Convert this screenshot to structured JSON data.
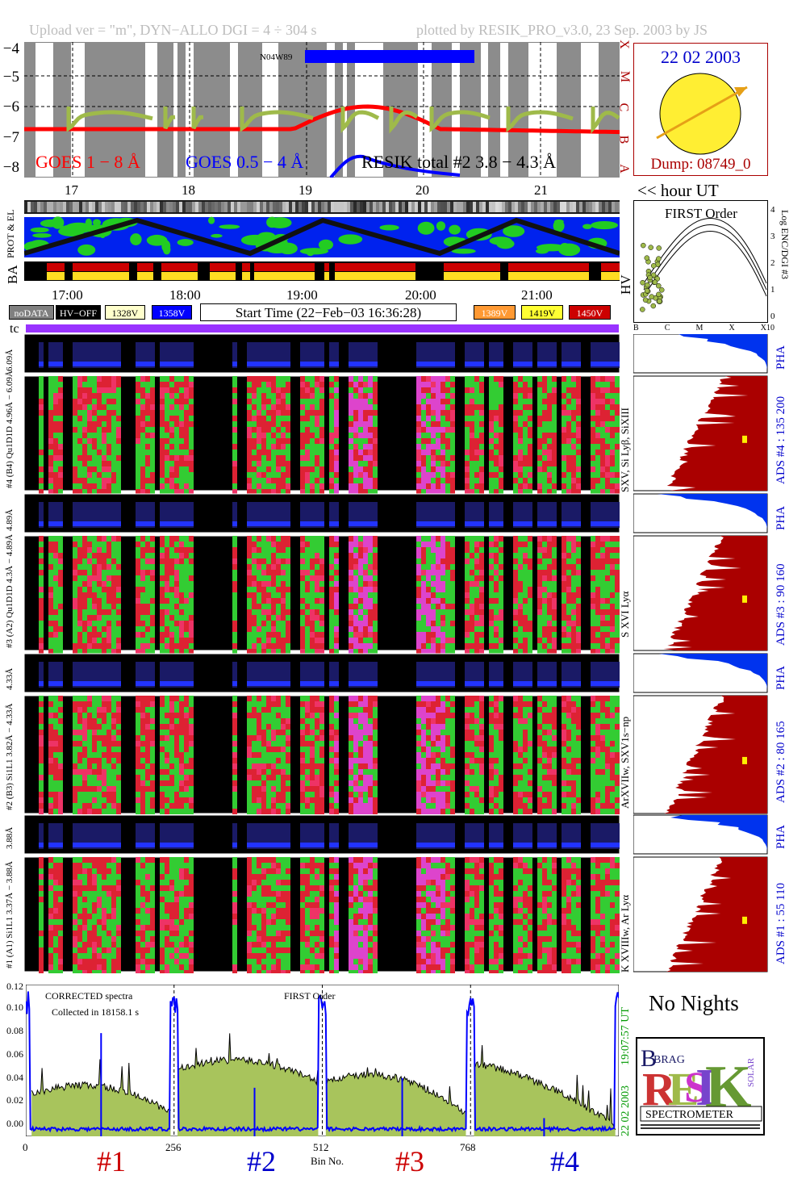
{
  "header": {
    "left": "Upload ver = \"m\",  DYN−ALLO DGI =   4 ÷ 304 s",
    "right": "plotted by RESIK_PRO_v3.0, 23 Sep. 2003 by JS"
  },
  "goes": {
    "yticks": [
      "−4",
      "−5",
      "−6",
      "−7",
      "−8"
    ],
    "class_labels": [
      "X",
      "M",
      "C",
      "B",
      "A"
    ],
    "legend_goes18": "GOES 1 − 8 Å",
    "legend_goes054": "GOES 0.5 − 4 Å",
    "legend_resik": "RESIK total #2  3.8 − 4.3 Å",
    "marker_label": "N04W89",
    "colors": {
      "goes18": "#ff0000",
      "goes054": "#0000ff",
      "resik": "#9fba4a"
    }
  },
  "sun": {
    "date": "22 02 2003",
    "dump": "Dump: 08749_0",
    "color": "#ffee33"
  },
  "time_axis": {
    "top_ticks": [
      "17",
      "18",
      "19",
      "20",
      "21"
    ],
    "hour_label": "<< hour UT",
    "mid_ticks": [
      "17:00",
      "18:00",
      "19:00",
      "20:00",
      "21:00"
    ]
  },
  "rows": {
    "prot_el": "PROT & EL",
    "ba": "BA",
    "hv": "HV",
    "tc": "tc"
  },
  "voltage_legend": {
    "nodata": "noDATA",
    "hvoff": "HV−OFF",
    "v1328": "1328V",
    "v1358": "1358V",
    "v1389": "1389V",
    "v1419": "1419V",
    "v1450": "1450V",
    "colors": {
      "nodata": "#808080",
      "hvoff": "#000000",
      "v1328": "#ffffcc",
      "v1358": "#0000ff",
      "v1389": "#ff9933",
      "v1419": "#ffff33",
      "v1450": "#cc0000"
    },
    "start_time": "Start Time (22−Feb−03 16:36:28)"
  },
  "first_order": {
    "title": "FIRST Order",
    "ylabel": "Log ENC/DGI #3",
    "yticks": [
      "4",
      "3",
      "2",
      "1",
      "0"
    ],
    "xticks": [
      "B",
      "C",
      "M",
      "X",
      "X10"
    ]
  },
  "spectra_panels": [
    {
      "pha_label": "#4 (B4) Qu1D1D 4.96Å − 6.09Å",
      "main_label": "#4 (B4) Qu1D1D 4.96Å − 6.09Å",
      "lines": "SXV, Si Lyβ, SiXIII",
      "ads": "ADS #4 :   135 200"
    },
    {
      "pha_label": "#3 (A2) Qu1D1D 4.3Å − 4.89Å",
      "main_label": "#3 (A2) Qu1D1D 4.3Å − 4.89Å",
      "lines": "S XVI Lyα",
      "ads": "ADS #3 :   90 160"
    },
    {
      "pha_label": "#2 (B3) Si1L1 3.82Å − 4.33Å",
      "main_label": "#2 (B3) Si1L1 3.82Å − 4.33Å",
      "lines": "ArXVIIw, SXV1s−np",
      "ads": "ADS #2 :   80 165"
    },
    {
      "pha_label": "#1 (A1) Si1L1 3.37Å − 3.88Å",
      "main_label": "#1 (A1) Si1L1 3.37Å − 3.88Å",
      "lines": "K XVIIIw, Ar Lyα",
      "ads": "ADS #1 :   55 110"
    }
  ],
  "pha": "PHA",
  "no_nights": "No Nights",
  "logo": {
    "letters": "RESIK",
    "small": "BRAG",
    "solar": "SOLAR",
    "spectrometer": "SPECTROMETER"
  },
  "chart_data": {
    "type": "area",
    "title": "",
    "annotations": [
      "CORRECTED spectra",
      "Collected in 18158.1 s",
      "FIRST Order"
    ],
    "xlabel": "Bin No.",
    "x_ticks": [
      "0",
      "256",
      "512",
      "768"
    ],
    "ylim": [
      0,
      0.125
    ],
    "y_ticks": [
      "0.00",
      "0.02",
      "0.04",
      "0.06",
      "0.08",
      "0.10",
      "0.12"
    ],
    "right_labels": [
      "22 02 2003",
      "19:07:57 UT"
    ],
    "channel_labels": [
      "#1",
      "#2",
      "#3",
      "#4"
    ],
    "channel_colors": [
      "#cc0000",
      "#0000cc",
      "#cc0000",
      "#0000cc"
    ],
    "series": [
      {
        "name": "spectrum",
        "color": "#9fba4a",
        "segments": [
          {
            "x0": 10,
            "x1": 250,
            "y0": 0.035,
            "peak": 0.045,
            "y1": 0.02
          },
          {
            "x0": 262,
            "x1": 505,
            "y0": 0.055,
            "peak": 0.065,
            "y1": 0.045
          },
          {
            "x0": 518,
            "x1": 760,
            "y0": 0.045,
            "peak": 0.055,
            "y1": 0.018
          },
          {
            "x0": 774,
            "x1": 1018,
            "y0": 0.06,
            "peak": 0.055,
            "y1": 0.008
          }
        ]
      },
      {
        "name": "blue",
        "color": "#0000ff",
        "values_level": 0.006
      }
    ]
  }
}
